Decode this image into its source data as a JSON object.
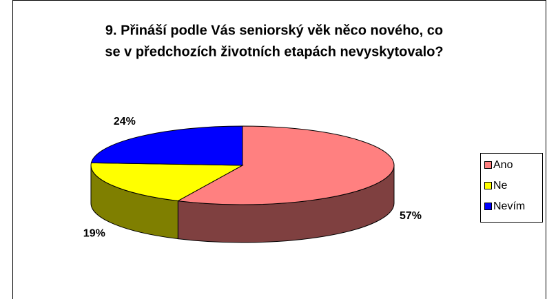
{
  "chart_data": {
    "type": "pie",
    "title": [
      "9. Přináší podle Vás seniorský věk něco nového, co",
      "se v předchozích životních etapách nevyskytovalo?"
    ],
    "categories": [
      "Ano",
      "Ne",
      "Nevím"
    ],
    "values": [
      57,
      19,
      24
    ],
    "value_labels": [
      "57%",
      "19%",
      "24%"
    ],
    "colors": [
      "#ff8080",
      "#ffff00",
      "#0000ff"
    ],
    "legend": "right"
  }
}
